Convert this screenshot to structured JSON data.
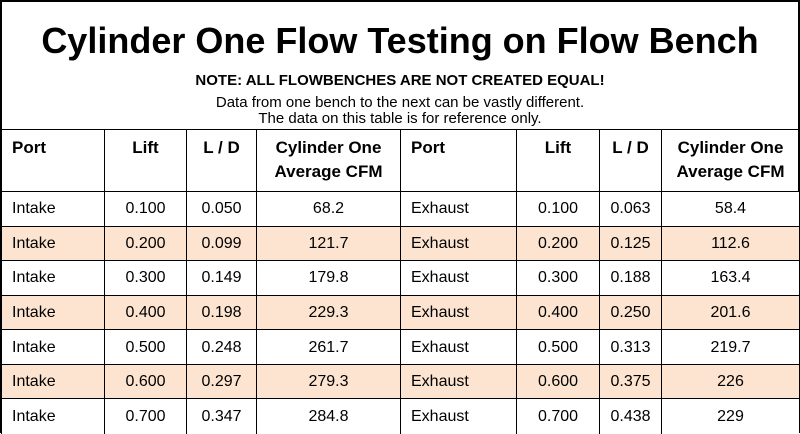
{
  "header": {
    "title": "Cylinder One Flow Testing on Flow Bench",
    "note": "NOTE: ALL FLOWBENCHES ARE NOT CREATED EQUAL!",
    "lines": [
      "Data from one bench to the next can be vastly different.",
      "The data on this table is for reference only."
    ]
  },
  "table": {
    "columns": [
      "Port",
      "Lift",
      "L / D",
      "Cylinder One Average CFM",
      "Port",
      "Lift",
      "L / D",
      "Cylinder One Average CFM"
    ],
    "rows": [
      [
        "Intake",
        "0.100",
        "0.050",
        "68.2",
        "Exhaust",
        "0.100",
        "0.063",
        "58.4"
      ],
      [
        "Intake",
        "0.200",
        "0.099",
        "121.7",
        "Exhaust",
        "0.200",
        "0.125",
        "112.6"
      ],
      [
        "Intake",
        "0.300",
        "0.149",
        "179.8",
        "Exhaust",
        "0.300",
        "0.188",
        "163.4"
      ],
      [
        "Intake",
        "0.400",
        "0.198",
        "229.3",
        "Exhaust",
        "0.400",
        "0.250",
        "201.6"
      ],
      [
        "Intake",
        "0.500",
        "0.248",
        "261.7",
        "Exhaust",
        "0.500",
        "0.313",
        "219.7"
      ],
      [
        "Intake",
        "0.600",
        "0.297",
        "279.3",
        "Exhaust",
        "0.600",
        "0.375",
        "226"
      ],
      [
        "Intake",
        "0.700",
        "0.347",
        "284.8",
        "Exhaust",
        "0.700",
        "0.438",
        "229"
      ]
    ]
  }
}
